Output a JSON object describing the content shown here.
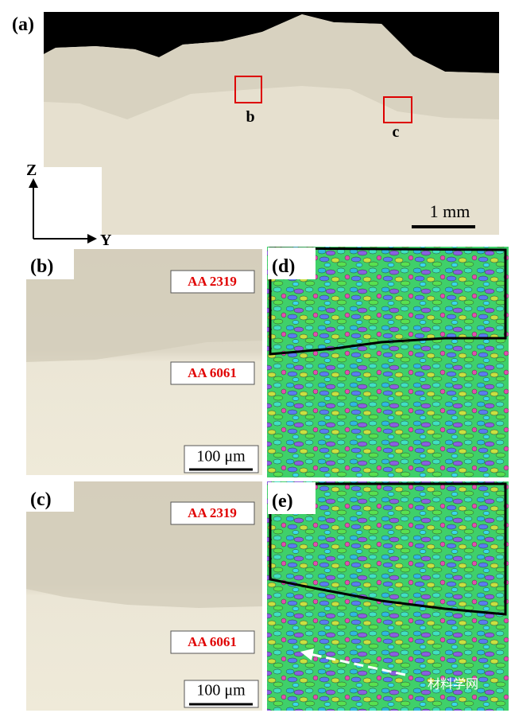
{
  "figure": {
    "panels": [
      {
        "label": "(a)",
        "markers": [
          "b",
          "c"
        ],
        "axes": [
          "Z",
          "Y"
        ],
        "scale_bar": "1 mm"
      },
      {
        "label": "(b)",
        "materials": [
          "AA 2319",
          "AA 6061"
        ],
        "scale_bar": "100 μm"
      },
      {
        "label": "(c)",
        "materials": [
          "AA 2319",
          "AA 6061"
        ],
        "scale_bar": "100 μm"
      },
      {
        "label": "(d)"
      },
      {
        "label": "(e)"
      }
    ],
    "watermark": "材料学网"
  }
}
